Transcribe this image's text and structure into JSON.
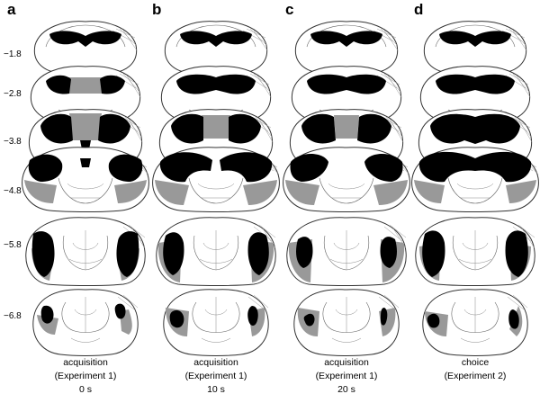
{
  "panels": [
    {
      "letter": "a",
      "caption": [
        "acquisition",
        "(Experiment 1)",
        "0 s"
      ]
    },
    {
      "letter": "b",
      "caption": [
        "acquisition",
        "(Experiment 1)",
        "10 s"
      ]
    },
    {
      "letter": "c",
      "caption": [
        "acquisition",
        "(Experiment 1)",
        "20 s"
      ]
    },
    {
      "letter": "d",
      "caption": [
        "choice",
        "(Experiment 2)"
      ]
    }
  ],
  "ap_levels": [
    "−1.8",
    "−2.8",
    "−3.8",
    "−4.8",
    "−5.8",
    "−6.8"
  ],
  "colors": {
    "outline": "#333333",
    "lesion_core": "#000000",
    "lesion_extent": "#999999"
  }
}
